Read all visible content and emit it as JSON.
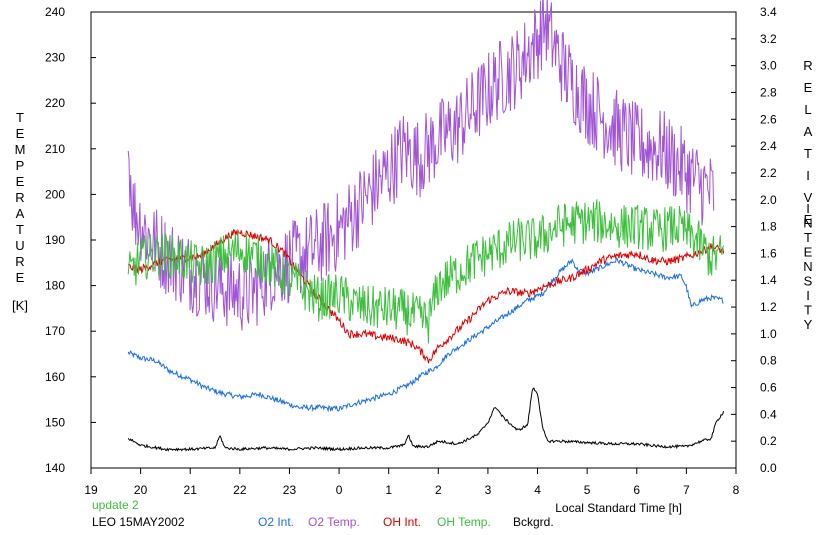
{
  "chart_data": {
    "type": "line",
    "left_axis": {
      "label": "TEMPERATURE",
      "unit": "[K]",
      "range": [
        140,
        240
      ],
      "ticks": [
        140,
        150,
        160,
        170,
        180,
        190,
        200,
        210,
        220,
        230,
        240
      ]
    },
    "right_axis": {
      "label": "RELATIVE INTENSITY",
      "range": [
        0,
        3.4
      ],
      "ticks": [
        "0.0",
        "0.2",
        "0.4",
        "0.6",
        "0.8",
        "1.0",
        "1.2",
        "1.4",
        "1.6",
        "1.8",
        "2.0",
        "2.2",
        "2.4",
        "2.6",
        "2.8",
        "3.0",
        "3.2",
        "3.4"
      ]
    },
    "x_axis": {
      "label": "Local Standard Time [h]",
      "ticks": [
        "19",
        "20",
        "21",
        "22",
        "23",
        "0",
        "1",
        "2",
        "3",
        "4",
        "5",
        "6",
        "7",
        "8"
      ],
      "range": [
        19,
        32
      ]
    },
    "info_lines": [
      "update 2",
      "LEO 15MAY2002"
    ],
    "grid": false,
    "legend_position": "bottom",
    "series": [
      {
        "name": "O2 Int.",
        "color": "#1a6fe0",
        "axis": "right",
        "noise": 0.02,
        "points": [
          [
            19.75,
            0.86
          ],
          [
            20.0,
            0.82
          ],
          [
            20.3,
            0.8
          ],
          [
            20.6,
            0.72
          ],
          [
            21.0,
            0.66
          ],
          [
            21.3,
            0.6
          ],
          [
            21.6,
            0.56
          ],
          [
            22.0,
            0.53
          ],
          [
            22.4,
            0.55
          ],
          [
            22.8,
            0.5
          ],
          [
            23.2,
            0.45
          ],
          [
            23.6,
            0.45
          ],
          [
            24.0,
            0.44
          ],
          [
            24.3,
            0.48
          ],
          [
            24.7,
            0.52
          ],
          [
            25.0,
            0.55
          ],
          [
            25.4,
            0.62
          ],
          [
            25.7,
            0.7
          ],
          [
            25.95,
            0.75
          ],
          [
            26.2,
            0.85
          ],
          [
            26.6,
            0.95
          ],
          [
            27.0,
            1.05
          ],
          [
            27.4,
            1.15
          ],
          [
            27.8,
            1.25
          ],
          [
            28.1,
            1.3
          ],
          [
            28.3,
            1.4
          ],
          [
            28.5,
            1.48
          ],
          [
            28.7,
            1.55
          ],
          [
            28.8,
            1.48
          ],
          [
            29.0,
            1.45
          ],
          [
            29.3,
            1.5
          ],
          [
            29.6,
            1.55
          ],
          [
            30.0,
            1.48
          ],
          [
            30.3,
            1.45
          ],
          [
            30.6,
            1.42
          ],
          [
            30.9,
            1.43
          ],
          [
            31.0,
            1.35
          ],
          [
            31.1,
            1.2
          ],
          [
            31.3,
            1.25
          ],
          [
            31.5,
            1.27
          ],
          [
            31.75,
            1.25
          ]
        ]
      },
      {
        "name": "O2 Temp.",
        "color": "#a054d6",
        "axis": "left",
        "noise": 9,
        "points": [
          [
            19.75,
            210
          ],
          [
            19.85,
            197
          ],
          [
            20.2,
            190
          ],
          [
            20.6,
            186
          ],
          [
            21.0,
            183
          ],
          [
            21.4,
            181
          ],
          [
            21.8,
            179
          ],
          [
            22.2,
            178
          ],
          [
            22.6,
            183
          ],
          [
            23.0,
            185
          ],
          [
            23.5,
            188
          ],
          [
            24.0,
            192
          ],
          [
            24.3,
            196
          ],
          [
            24.6,
            200
          ],
          [
            25.0,
            205
          ],
          [
            25.3,
            210
          ],
          [
            25.6,
            208
          ],
          [
            26.0,
            212
          ],
          [
            26.4,
            215
          ],
          [
            26.8,
            220
          ],
          [
            27.2,
            225
          ],
          [
            27.6,
            228
          ],
          [
            28.0,
            234
          ],
          [
            28.15,
            238
          ],
          [
            28.35,
            232
          ],
          [
            28.6,
            226
          ],
          [
            29.0,
            220
          ],
          [
            29.5,
            215
          ],
          [
            30.0,
            211
          ],
          [
            30.5,
            210
          ],
          [
            30.8,
            207
          ],
          [
            31.0,
            205
          ],
          [
            31.3,
            202
          ],
          [
            31.55,
            200
          ]
        ]
      },
      {
        "name": "OH Int.",
        "color": "#dd0000",
        "axis": "right",
        "noise": 0.03,
        "points": [
          [
            19.75,
            1.5
          ],
          [
            20.0,
            1.48
          ],
          [
            20.4,
            1.54
          ],
          [
            20.8,
            1.56
          ],
          [
            21.2,
            1.58
          ],
          [
            21.5,
            1.66
          ],
          [
            21.8,
            1.74
          ],
          [
            22.0,
            1.76
          ],
          [
            22.3,
            1.73
          ],
          [
            22.6,
            1.7
          ],
          [
            22.9,
            1.6
          ],
          [
            23.2,
            1.45
          ],
          [
            23.5,
            1.3
          ],
          [
            23.7,
            1.22
          ],
          [
            24.0,
            1.1
          ],
          [
            24.2,
            1.0
          ],
          [
            24.5,
            1.0
          ],
          [
            24.8,
            0.98
          ],
          [
            25.2,
            0.96
          ],
          [
            25.5,
            0.92
          ],
          [
            25.7,
            0.85
          ],
          [
            25.8,
            0.8
          ],
          [
            26.0,
            0.9
          ],
          [
            26.3,
            1.0
          ],
          [
            26.6,
            1.1
          ],
          [
            27.0,
            1.25
          ],
          [
            27.4,
            1.32
          ],
          [
            27.8,
            1.3
          ],
          [
            28.1,
            1.35
          ],
          [
            28.5,
            1.4
          ],
          [
            28.7,
            1.42
          ],
          [
            29.0,
            1.48
          ],
          [
            29.3,
            1.55
          ],
          [
            29.6,
            1.58
          ],
          [
            30.0,
            1.6
          ],
          [
            30.3,
            1.55
          ],
          [
            30.6,
            1.54
          ],
          [
            30.9,
            1.56
          ],
          [
            31.2,
            1.6
          ],
          [
            31.5,
            1.65
          ],
          [
            31.75,
            1.62
          ]
        ]
      },
      {
        "name": "OH Temp.",
        "color": "#3cbf3c",
        "axis": "left",
        "noise": 5,
        "points": [
          [
            19.75,
            182
          ],
          [
            20.0,
            186
          ],
          [
            20.4,
            187
          ],
          [
            20.8,
            186
          ],
          [
            21.2,
            184
          ],
          [
            21.6,
            186
          ],
          [
            22.0,
            188
          ],
          [
            22.4,
            186
          ],
          [
            22.8,
            183
          ],
          [
            23.2,
            180
          ],
          [
            23.6,
            177
          ],
          [
            24.0,
            178
          ],
          [
            24.3,
            176
          ],
          [
            24.6,
            175
          ],
          [
            25.0,
            175
          ],
          [
            25.4,
            174
          ],
          [
            25.8,
            172
          ],
          [
            26.0,
            180
          ],
          [
            26.4,
            183
          ],
          [
            26.8,
            186
          ],
          [
            27.2,
            188
          ],
          [
            27.6,
            190
          ],
          [
            28.0,
            190
          ],
          [
            28.4,
            193
          ],
          [
            28.8,
            194
          ],
          [
            29.2,
            194
          ],
          [
            29.6,
            193
          ],
          [
            30.0,
            193
          ],
          [
            30.4,
            192
          ],
          [
            30.8,
            193
          ],
          [
            31.2,
            190
          ],
          [
            31.5,
            186
          ],
          [
            31.75,
            187
          ]
        ]
      },
      {
        "name": "Bckgrd.",
        "color": "#000000",
        "axis": "right",
        "noise": 0.01,
        "points": [
          [
            19.75,
            0.22
          ],
          [
            20.0,
            0.17
          ],
          [
            20.5,
            0.14
          ],
          [
            21.0,
            0.14
          ],
          [
            21.5,
            0.15
          ],
          [
            21.6,
            0.24
          ],
          [
            21.7,
            0.15
          ],
          [
            22.0,
            0.14
          ],
          [
            22.5,
            0.15
          ],
          [
            23.0,
            0.14
          ],
          [
            23.5,
            0.15
          ],
          [
            24.0,
            0.14
          ],
          [
            24.5,
            0.15
          ],
          [
            25.0,
            0.15
          ],
          [
            25.3,
            0.17
          ],
          [
            25.4,
            0.24
          ],
          [
            25.5,
            0.16
          ],
          [
            25.8,
            0.16
          ],
          [
            26.0,
            0.2
          ],
          [
            26.4,
            0.18
          ],
          [
            26.8,
            0.25
          ],
          [
            27.0,
            0.34
          ],
          [
            27.15,
            0.46
          ],
          [
            27.3,
            0.38
          ],
          [
            27.6,
            0.28
          ],
          [
            27.8,
            0.32
          ],
          [
            27.9,
            0.6
          ],
          [
            28.0,
            0.56
          ],
          [
            28.1,
            0.3
          ],
          [
            28.2,
            0.2
          ],
          [
            28.5,
            0.2
          ],
          [
            29.0,
            0.19
          ],
          [
            29.5,
            0.18
          ],
          [
            30.0,
            0.18
          ],
          [
            30.5,
            0.16
          ],
          [
            31.0,
            0.16
          ],
          [
            31.3,
            0.2
          ],
          [
            31.5,
            0.22
          ],
          [
            31.6,
            0.34
          ],
          [
            31.75,
            0.42
          ]
        ]
      }
    ]
  }
}
